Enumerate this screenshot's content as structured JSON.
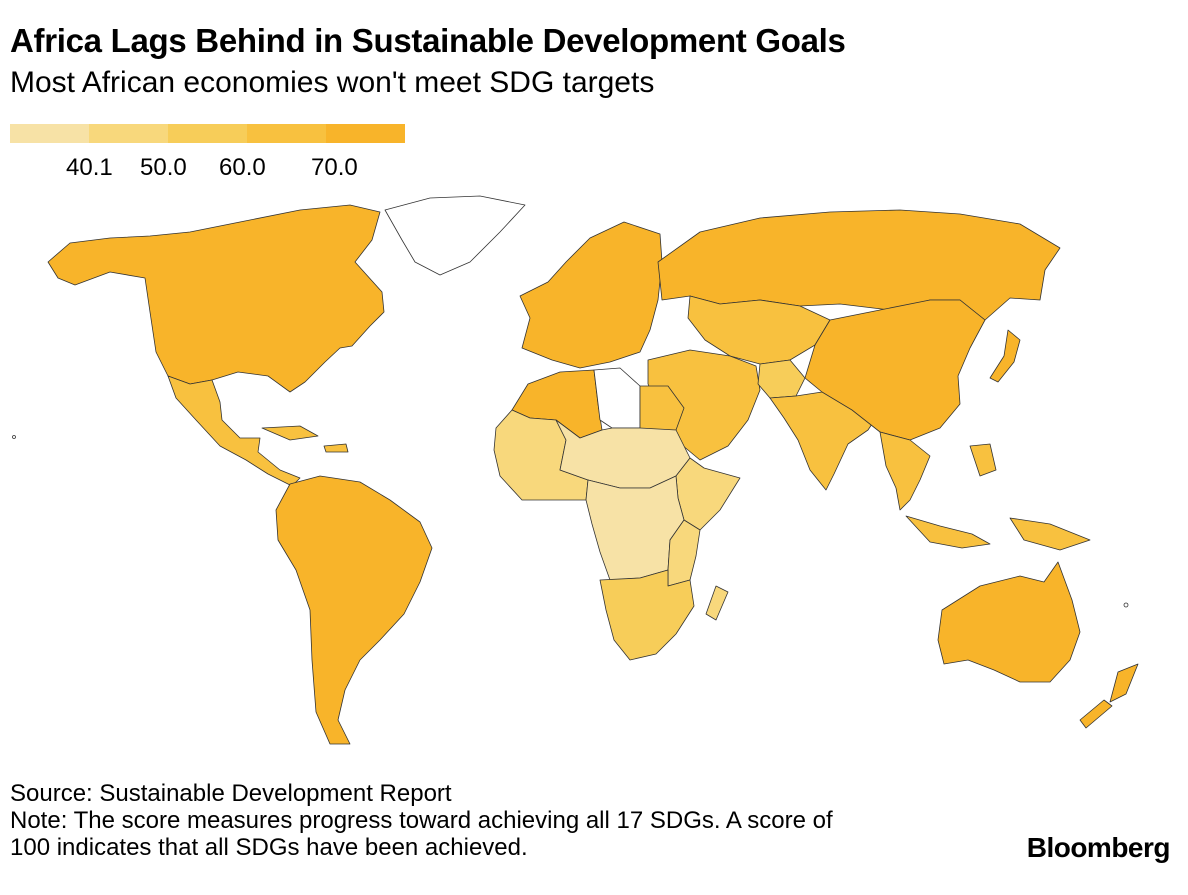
{
  "header": {
    "title": "Africa Lags Behind in Sustainable Development Goals",
    "subtitle": "Most African economies won't meet SDG targets"
  },
  "legend": {
    "colors": [
      "#f7e2a6",
      "#f8d87c",
      "#f7cd59",
      "#f8c13f",
      "#f8b42a"
    ],
    "ticks": [
      "40.1",
      "50.0",
      "60.0",
      "70.0"
    ]
  },
  "map": {
    "no_data_color": "#ffffff",
    "regions": [
      {
        "id": "north-america",
        "color": "#f8b42a"
      },
      {
        "id": "greenland",
        "color": "#ffffff"
      },
      {
        "id": "mexico-central-america",
        "color": "#f8c13f"
      },
      {
        "id": "caribbean",
        "color": "#f8c13f"
      },
      {
        "id": "south-america",
        "color": "#f8b42a"
      },
      {
        "id": "europe",
        "color": "#f8b42a"
      },
      {
        "id": "russia-north-asia",
        "color": "#f8b42a"
      },
      {
        "id": "central-asia",
        "color": "#f8c13f"
      },
      {
        "id": "middle-east",
        "color": "#f8c13f"
      },
      {
        "id": "afghanistan",
        "color": "#f7cd59"
      },
      {
        "id": "india-south-asia",
        "color": "#f8c13f"
      },
      {
        "id": "china",
        "color": "#f8b42a"
      },
      {
        "id": "japan",
        "color": "#f8b42a"
      },
      {
        "id": "southeast-asia",
        "color": "#f8c13f"
      },
      {
        "id": "indonesia",
        "color": "#f8c13f"
      },
      {
        "id": "australia",
        "color": "#f8b42a"
      },
      {
        "id": "new-zealand",
        "color": "#f8b42a"
      },
      {
        "id": "north-africa",
        "color": "#f8b42a"
      },
      {
        "id": "libya",
        "color": "#ffffff"
      },
      {
        "id": "egypt",
        "color": "#f8c13f"
      },
      {
        "id": "west-africa",
        "color": "#f8d87c"
      },
      {
        "id": "sahel",
        "color": "#f7e2a6"
      },
      {
        "id": "horn-of-africa",
        "color": "#f8d87c"
      },
      {
        "id": "central-africa",
        "color": "#f7e2a6"
      },
      {
        "id": "east-africa",
        "color": "#f8d87c"
      },
      {
        "id": "southern-africa",
        "color": "#f7cd59"
      },
      {
        "id": "madagascar",
        "color": "#f8d87c"
      }
    ]
  },
  "footer": {
    "source": "Source: Sustainable Development Report",
    "note_line1": "Note: The score measures progress toward achieving all 17 SDGs. A score of",
    "note_line2": "100 indicates that all SDGs have been achieved."
  },
  "brand": "Bloomberg"
}
